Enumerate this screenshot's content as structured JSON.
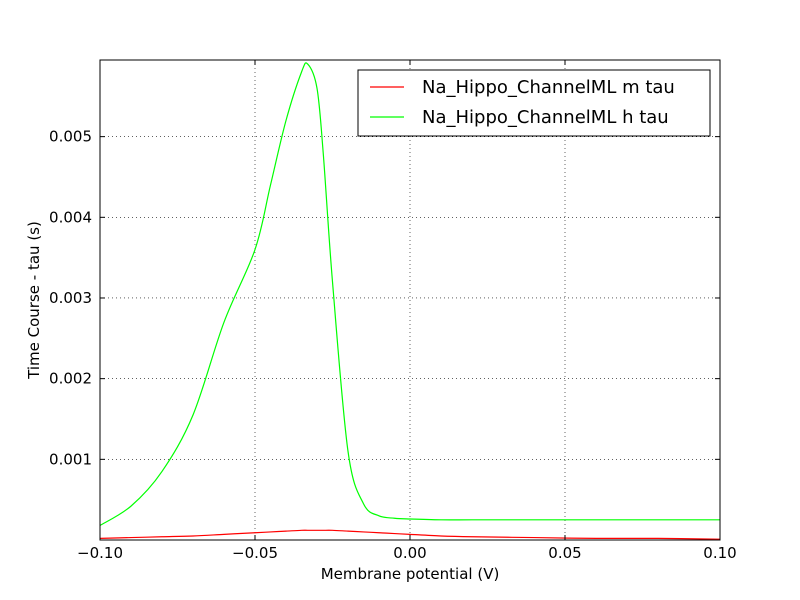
{
  "chart_data": {
    "type": "line",
    "title": "",
    "xlabel": "Membrane potential (V)",
    "ylabel": "Time Course - tau (s)",
    "xlim": [
      -0.1,
      0.1
    ],
    "ylim": [
      0.0,
      0.00595
    ],
    "x_ticks": [
      -0.1,
      -0.05,
      0.0,
      0.05,
      0.1
    ],
    "x_tick_labels": [
      "−0.10",
      "−0.05",
      "0.00",
      "0.05",
      "0.10"
    ],
    "y_ticks": [
      0.001,
      0.002,
      0.003,
      0.004,
      0.005
    ],
    "y_tick_labels": [
      "0.001",
      "0.002",
      "0.003",
      "0.004",
      "0.005"
    ],
    "grid": true,
    "legend_position": "top-right",
    "x": [
      -0.1,
      -0.09,
      -0.08,
      -0.07,
      -0.06,
      -0.05,
      -0.045,
      -0.04,
      -0.035,
      -0.033,
      -0.03,
      -0.028,
      -0.025,
      -0.02,
      -0.015,
      -0.01,
      -0.005,
      0.0,
      0.01,
      0.02,
      0.04,
      0.06,
      0.08,
      0.1
    ],
    "series": [
      {
        "name": "Na_Hippo_ChannelML m tau",
        "color": "#ff0000",
        "values": [
          2e-05,
          3e-05,
          4e-05,
          5e-05,
          7e-05,
          9e-05,
          0.0001,
          0.00011,
          0.00012,
          0.00012,
          0.00012,
          0.00012,
          0.00012,
          0.00011,
          0.0001,
          9e-05,
          8e-05,
          7e-05,
          5e-05,
          4e-05,
          3e-05,
          2e-05,
          2e-05,
          1e-05
        ]
      },
      {
        "name": "Na_Hippo_ChannelML h tau",
        "color": "#00ff00",
        "values": [
          0.00018,
          0.00042,
          0.00085,
          0.00155,
          0.0027,
          0.0036,
          0.0044,
          0.0052,
          0.0058,
          0.0059,
          0.0056,
          0.0048,
          0.0032,
          0.0011,
          0.00045,
          0.0003,
          0.00027,
          0.00026,
          0.00025,
          0.00025,
          0.00025,
          0.00025,
          0.00025,
          0.00025
        ]
      }
    ]
  }
}
